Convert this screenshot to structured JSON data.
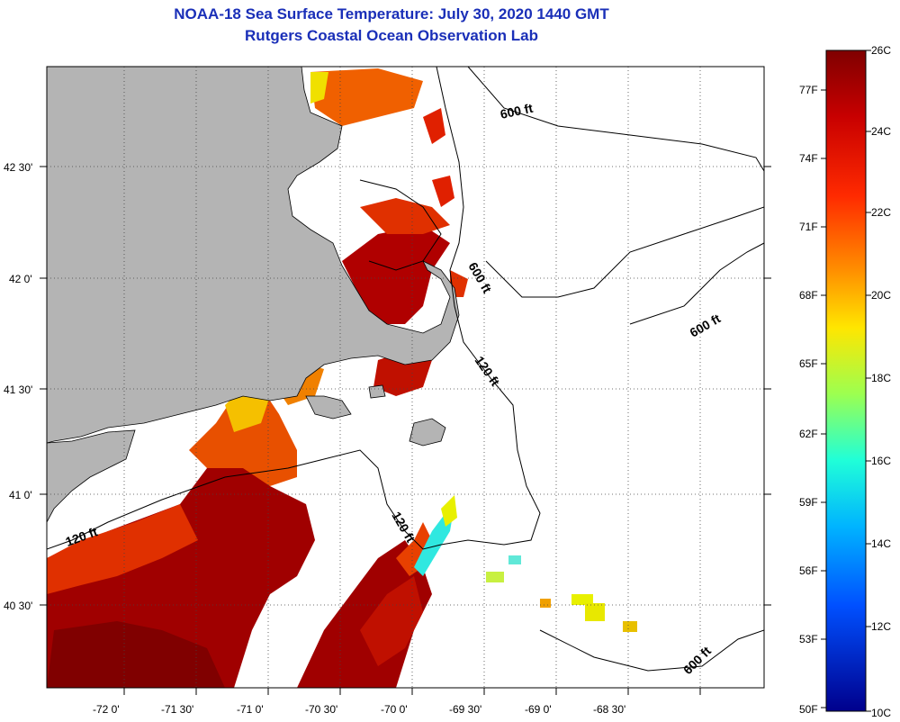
{
  "title": "NOAA-18 Sea Surface Temperature:  July 30, 2020 1440 GMT",
  "subtitle": "Rutgers Coastal Ocean Observation Lab",
  "lat_labels": [
    "42 30'",
    "42 0'",
    "41 30'",
    "41 0'",
    "40 30'"
  ],
  "lon_labels": [
    "-72 0'",
    "-71 30'",
    "-71 0'",
    "-70 30'",
    "-70 0'",
    "-69 30'",
    "-69 0'",
    "-68 30'"
  ],
  "contour_labels": [
    "600 ft",
    "600 ft",
    "600 ft",
    "600 ft",
    "120 ft",
    "120 ft",
    "120 ft"
  ],
  "colorbar": {
    "celsius_labels": [
      "26C",
      "24C",
      "22C",
      "20C",
      "18C",
      "16C",
      "14C",
      "12C",
      "10C"
    ],
    "fahrenheit_labels": [
      "77F",
      "74F",
      "71F",
      "68F",
      "65F",
      "62F",
      "59F",
      "56F",
      "53F",
      "50F"
    ]
  },
  "colors": {
    "title": "#1a2fb8",
    "land": "#b4b4b4",
    "ocean_nodata": "#ffffff",
    "warm": "#b00000",
    "cool": "#00d0e0"
  }
}
